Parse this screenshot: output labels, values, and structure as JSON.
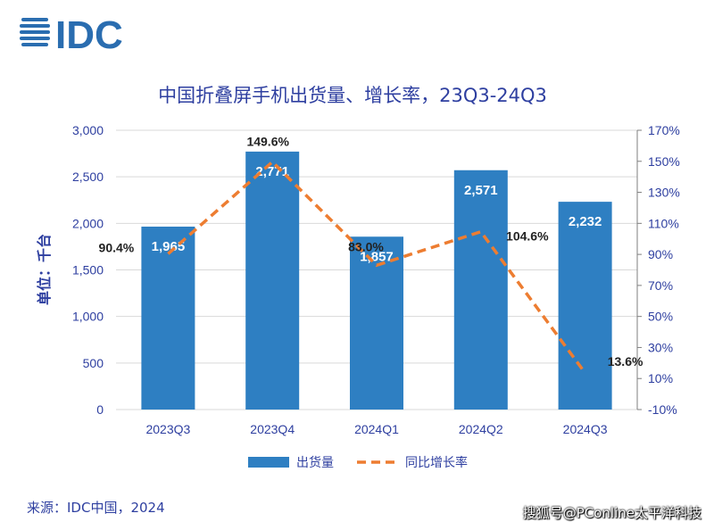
{
  "logo": {
    "text": "IDC",
    "color": "#2a6db0"
  },
  "source": "来源：IDC中国，2024",
  "watermark": "搜狐号@PConline太平洋科技",
  "chart_data": {
    "type": "bar",
    "title": "中国折叠屏手机出货量、增长率，23Q3-24Q3",
    "ylabel": "单位：千台",
    "categories": [
      "2023Q3",
      "2023Q4",
      "2024Q1",
      "2024Q2",
      "2024Q3"
    ],
    "ylim": [
      0,
      3000
    ],
    "y2lim": [
      -10,
      170
    ],
    "yticks": [
      "0",
      "500",
      "1,000",
      "1,500",
      "2,000",
      "2,500",
      "3,000"
    ],
    "y2ticks": [
      "-10%",
      "10%",
      "30%",
      "50%",
      "70%",
      "90%",
      "110%",
      "130%",
      "150%",
      "170%"
    ],
    "grid": true,
    "legend_position": "bottom",
    "series": [
      {
        "name": "出货量",
        "type": "bar",
        "axis": "left",
        "color": "#2e7fc2",
        "values": [
          1965,
          2771,
          1857,
          2571,
          2232
        ],
        "labels": [
          "1,965",
          "2,771",
          "1,857",
          "2,571",
          "2,232"
        ]
      },
      {
        "name": "同比增长率",
        "type": "line",
        "axis": "right",
        "style": "dashed",
        "color": "#ed7d31",
        "values": [
          90.4,
          149.6,
          83.0,
          104.6,
          13.6
        ],
        "labels": [
          "90.4%",
          "149.6%",
          "83.0%",
          "104.6%",
          "13.6%"
        ]
      }
    ]
  }
}
